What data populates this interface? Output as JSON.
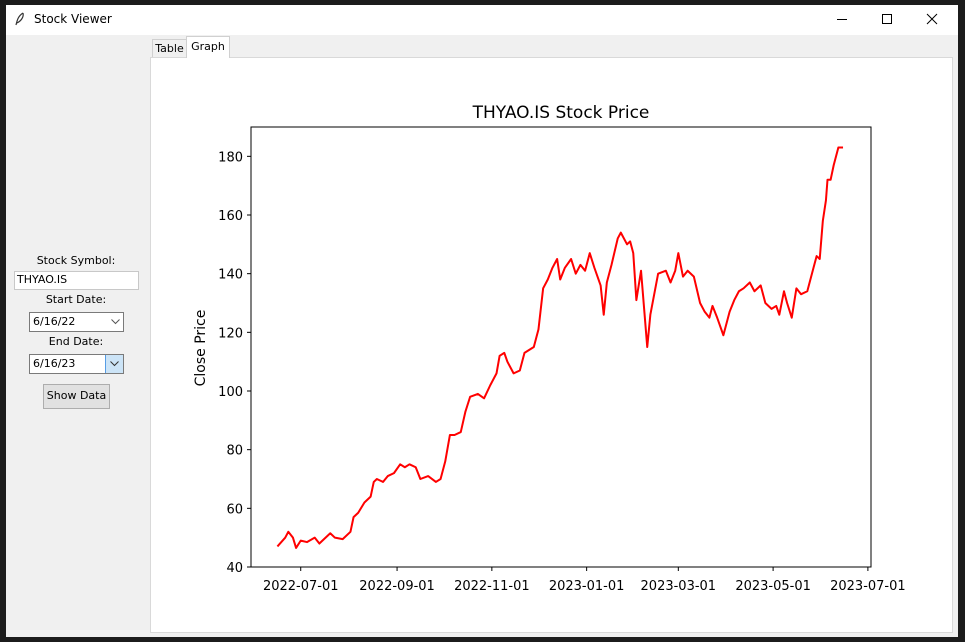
{
  "window": {
    "title": "Stock Viewer"
  },
  "sidebar": {
    "symbol_label": "Stock Symbol:",
    "symbol_value": "THYAO.IS",
    "start_label": "Start Date:",
    "start_value": "6/16/22",
    "end_label": "End Date:",
    "end_value": "6/16/23",
    "button": "Show Data"
  },
  "tabs": [
    "Table",
    "Graph"
  ],
  "chart_data": {
    "type": "line",
    "title": "THYAO.IS Stock Price",
    "y_label": "Close Price",
    "color": "#ff0000",
    "x": [
      "2022-06-16",
      "2022-06-21",
      "2022-06-23",
      "2022-06-26",
      "2022-06-28",
      "2022-07-01",
      "2022-07-05",
      "2022-07-10",
      "2022-07-13",
      "2022-07-20",
      "2022-07-23",
      "2022-07-28",
      "2022-08-02",
      "2022-08-04",
      "2022-08-07",
      "2022-08-11",
      "2022-08-15",
      "2022-08-17",
      "2022-08-19",
      "2022-08-23",
      "2022-08-26",
      "2022-08-30",
      "2022-09-03",
      "2022-09-06",
      "2022-09-09",
      "2022-09-13",
      "2022-09-16",
      "2022-09-21",
      "2022-09-26",
      "2022-09-29",
      "2022-10-02",
      "2022-10-05",
      "2022-10-08",
      "2022-10-12",
      "2022-10-15",
      "2022-10-18",
      "2022-10-23",
      "2022-10-27",
      "2022-10-31",
      "2022-11-04",
      "2022-11-06",
      "2022-11-09",
      "2022-11-11",
      "2022-11-15",
      "2022-11-19",
      "2022-11-22",
      "2022-11-28",
      "2022-12-01",
      "2022-12-04",
      "2022-12-07",
      "2022-12-10",
      "2022-12-13",
      "2022-12-15",
      "2022-12-18",
      "2022-12-22",
      "2022-12-25",
      "2022-12-28",
      "2022-12-31",
      "2023-01-03",
      "2023-01-06",
      "2023-01-10",
      "2023-01-12",
      "2023-01-14",
      "2023-01-17",
      "2023-01-21",
      "2023-01-23",
      "2023-01-27",
      "2023-01-29",
      "2023-01-31",
      "2023-02-02",
      "2023-02-05",
      "2023-02-09",
      "2023-02-11",
      "2023-02-16",
      "2023-02-21",
      "2023-02-24",
      "2023-02-27",
      "2023-03-01",
      "2023-03-04",
      "2023-03-07",
      "2023-03-11",
      "2023-03-15",
      "2023-03-18",
      "2023-03-21",
      "2023-03-23",
      "2023-03-26",
      "2023-03-30",
      "2023-04-03",
      "2023-04-06",
      "2023-04-09",
      "2023-04-12",
      "2023-04-16",
      "2023-04-19",
      "2023-04-23",
      "2023-04-26",
      "2023-04-30",
      "2023-05-03",
      "2023-05-05",
      "2023-05-08",
      "2023-05-10",
      "2023-05-13",
      "2023-05-16",
      "2023-05-19",
      "2023-05-23",
      "2023-05-27",
      "2023-05-29",
      "2023-05-31",
      "2023-06-02",
      "2023-06-04",
      "2023-06-05",
      "2023-06-07",
      "2023-06-09",
      "2023-06-12",
      "2023-06-15"
    ],
    "values": [
      47,
      50,
      52,
      50,
      46.5,
      49,
      48.5,
      50,
      48,
      51.5,
      50,
      49.5,
      52,
      57,
      58.5,
      62,
      64,
      69,
      70,
      69,
      71,
      72,
      75,
      74,
      75,
      74,
      70,
      71,
      69,
      70,
      76,
      85,
      85,
      86,
      93,
      98,
      99,
      97.5,
      102,
      106,
      112,
      113,
      110,
      106,
      107,
      113,
      115,
      121,
      135,
      138,
      142,
      145,
      138,
      142,
      145,
      140,
      143,
      141,
      147,
      142,
      136,
      126,
      137,
      143,
      152,
      154,
      150,
      151,
      147,
      131,
      141,
      115,
      126,
      140,
      141,
      137,
      141,
      147,
      139,
      141,
      139,
      130,
      127,
      125,
      129,
      125,
      119,
      127,
      131,
      134,
      135,
      137,
      134,
      136,
      130,
      128,
      129,
      126,
      134,
      130,
      125,
      135,
      133,
      134,
      142,
      146,
      145,
      158,
      165,
      172,
      172,
      177,
      183,
      183
    ],
    "xlim": [
      "2022-05-30",
      "2023-07-03"
    ],
    "xticks": [
      "2022-07-01",
      "2022-09-01",
      "2022-11-01",
      "2023-01-01",
      "2023-03-01",
      "2023-05-01",
      "2023-07-01"
    ],
    "ylim": [
      40,
      190
    ],
    "yticks": [
      40,
      60,
      80,
      100,
      120,
      140,
      160,
      180
    ]
  }
}
